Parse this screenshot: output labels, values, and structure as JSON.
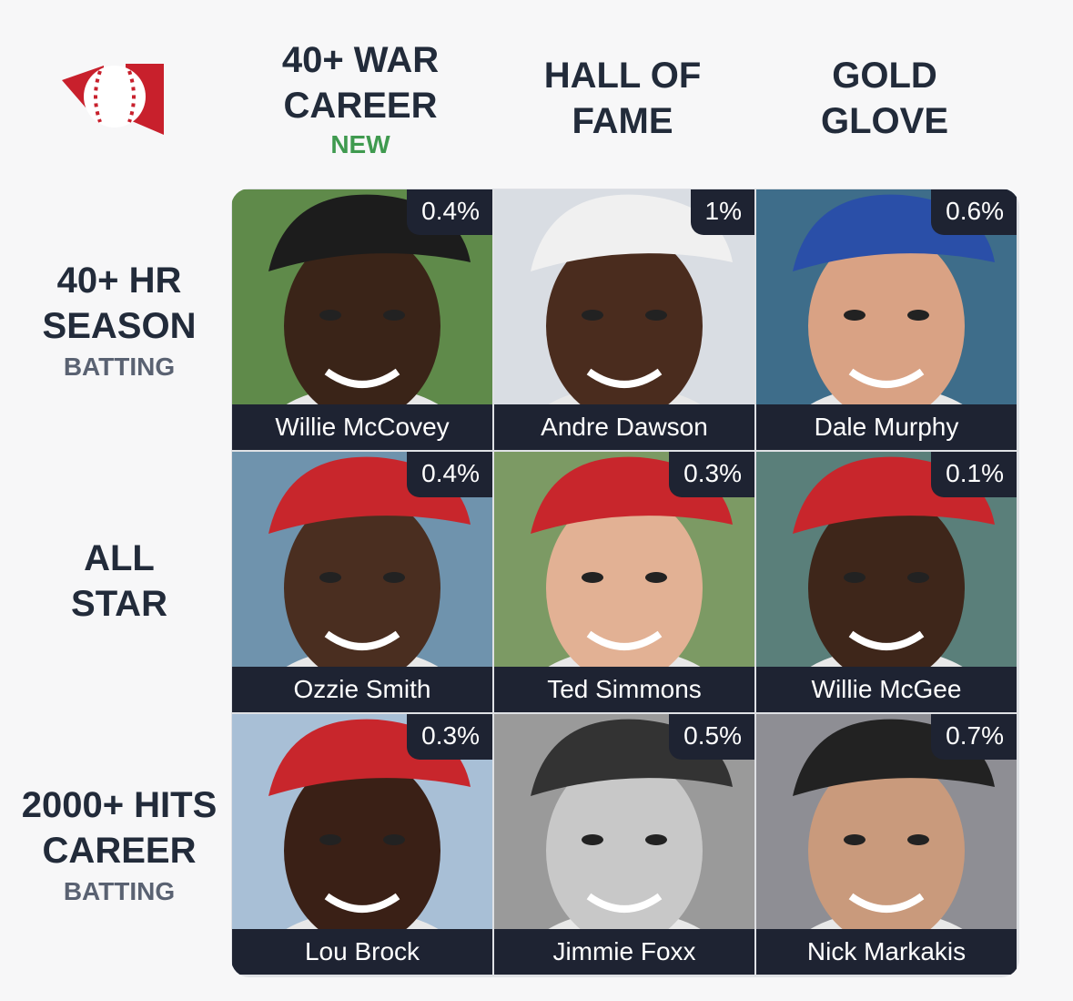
{
  "columns": [
    {
      "lines": [
        "40+ WAR",
        "CAREER"
      ],
      "tag": "NEW"
    },
    {
      "lines": [
        "HALL OF",
        "FAME"
      ]
    },
    {
      "lines": [
        "GOLD",
        "GLOVE"
      ]
    }
  ],
  "rows": [
    {
      "lines": [
        "40+ HR",
        "SEASON"
      ],
      "sub": "BATTING"
    },
    {
      "lines": [
        "ALL",
        "STAR"
      ]
    },
    {
      "lines": [
        "2000+ HITS",
        "CAREER"
      ],
      "sub": "BATTING"
    }
  ],
  "cells": [
    [
      {
        "percent": "0.4%",
        "name": "Willie McCovey"
      },
      {
        "percent": "1%",
        "name": "Andre Dawson"
      },
      {
        "percent": "0.6%",
        "name": "Dale Murphy"
      }
    ],
    [
      {
        "percent": "0.4%",
        "name": "Ozzie Smith"
      },
      {
        "percent": "0.3%",
        "name": "Ted Simmons"
      },
      {
        "percent": "0.1%",
        "name": "Willie McGee"
      }
    ],
    [
      {
        "percent": "0.3%",
        "name": "Lou Brock"
      },
      {
        "percent": "0.5%",
        "name": "Jimmie Foxx"
      },
      {
        "percent": "0.7%",
        "name": "Nick Markakis"
      }
    ]
  ]
}
